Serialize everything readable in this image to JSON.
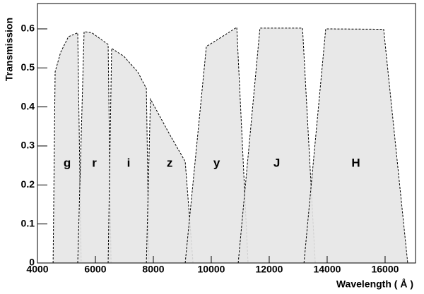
{
  "chart_data": {
    "type": "area",
    "x_label": "Wavelength ( Å )",
    "y_label": "Transmission",
    "xlim": [
      4000,
      17050
    ],
    "ylim": [
      0,
      0.665
    ],
    "xticks": [
      4000,
      6000,
      8000,
      10000,
      12000,
      14000,
      16000
    ],
    "yticks": [
      0,
      0.1,
      0.2,
      0.3,
      0.4,
      0.5,
      0.6
    ],
    "series": [
      {
        "name": "g",
        "color": "#e6e6e6",
        "x": [
          4540,
          4610,
          4800,
          5070,
          5390,
          5510
        ],
        "values": [
          0,
          0.49,
          0.54,
          0.58,
          0.59,
          0
        ]
      },
      {
        "name": "r",
        "color": "#e6e6e6",
        "x": [
          5390,
          5610,
          5880,
          6440,
          6540
        ],
        "values": [
          0,
          0.593,
          0.59,
          0.56,
          0
        ]
      },
      {
        "name": "i",
        "color": "#e6e6e6",
        "x": [
          6440,
          6560,
          6980,
          7460,
          7760,
          7850
        ],
        "values": [
          0,
          0.55,
          0.53,
          0.49,
          0.447,
          0
        ]
      },
      {
        "name": "z",
        "color": "#e6e6e6",
        "x": [
          7760,
          7900,
          8560,
          9100,
          9370
        ],
        "values": [
          0,
          0.42,
          0.33,
          0.26,
          0
        ]
      },
      {
        "name": "y",
        "color": "#e6e6e6",
        "x": [
          9100,
          9830,
          10270,
          10880,
          11270
        ],
        "values": [
          0,
          0.555,
          0.575,
          0.604,
          0
        ]
      },
      {
        "name": "J",
        "color": "#e6e6e6",
        "x": [
          10930,
          11680,
          13150,
          13590
        ],
        "values": [
          0,
          0.602,
          0.602,
          0
        ]
      },
      {
        "name": "H",
        "color": "#e6e6e6",
        "x": [
          13200,
          13950,
          15950,
          16780
        ],
        "values": [
          0,
          0.6,
          0.599,
          0
        ]
      }
    ]
  }
}
